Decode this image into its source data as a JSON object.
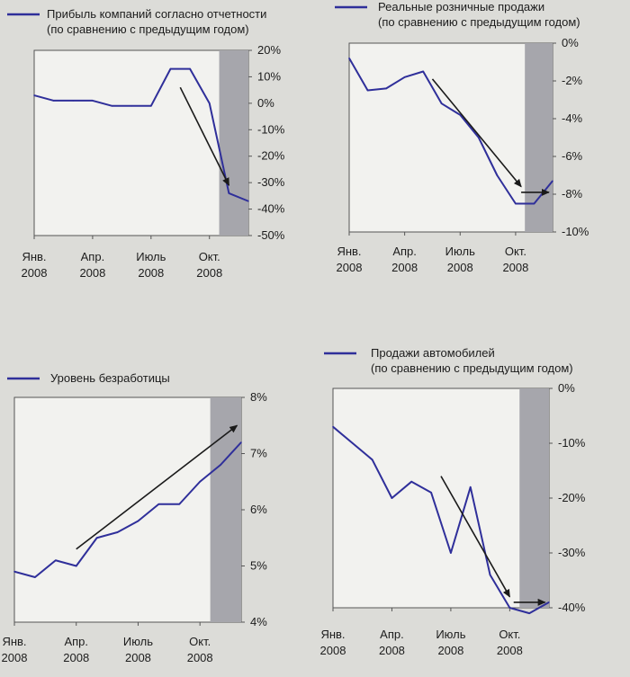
{
  "x_tick_labels": [
    {
      "month": "Янв.",
      "year": "2008"
    },
    {
      "month": "Апр.",
      "year": "2008"
    },
    {
      "month": "Июль",
      "year": "2008"
    },
    {
      "month": "Окт.",
      "year": "2008"
    }
  ],
  "colors": {
    "series": "#2f2f9a",
    "shade": "#a6a6ac",
    "arrow": "#1a1a1a",
    "panel": "#f2f2ef"
  },
  "chart_data": [
    {
      "id": "profit",
      "type": "line",
      "title_lines": [
        "Прибыль компаний согласно отчетности",
        "(по сравнению с предыдущим годом)"
      ],
      "series_name": "Прибыль компаний",
      "x_months": [
        0,
        1,
        2,
        3,
        4,
        5,
        6,
        7,
        8,
        9,
        10,
        11
      ],
      "values": [
        3,
        1,
        1,
        1,
        -1,
        -1,
        -1,
        13,
        13,
        0,
        -34,
        -37
      ],
      "ylim": [
        -50,
        20
      ],
      "y_ticks": [
        20,
        10,
        0,
        -10,
        -20,
        -30,
        -40,
        -50
      ],
      "y_tick_labels": [
        "20%",
        "10%",
        "0%",
        "-10%",
        "-20%",
        "-30%",
        "-40%",
        "-50%"
      ],
      "shaded_months": [
        10,
        11
      ],
      "trend_arrow": {
        "from": [
          7.5,
          6
        ],
        "to": [
          10,
          -31
        ]
      }
    },
    {
      "id": "retail",
      "type": "line",
      "title_lines": [
        "Реальные розничные продажи",
        "(по сравнению с предыдущим годом)"
      ],
      "series_name": "Реальные розничные продажи",
      "x_months": [
        0,
        1,
        2,
        3,
        4,
        5,
        6,
        7,
        8,
        9,
        10,
        11
      ],
      "values": [
        -0.8,
        -2.5,
        -2.4,
        -1.8,
        -1.5,
        -3.2,
        -3.8,
        -5.0,
        -7.0,
        -8.5,
        -8.5,
        -7.3
      ],
      "ylim": [
        -10,
        0
      ],
      "y_ticks": [
        0,
        -2,
        -4,
        -6,
        -8,
        -10
      ],
      "y_tick_labels": [
        "0%",
        "-2%",
        "-4%",
        "-6%",
        "-8%",
        "-10%"
      ],
      "shaded_months": [
        10,
        11
      ],
      "trend_arrow": {
        "from": [
          4.5,
          -1.9
        ],
        "to": [
          9.3,
          -7.6
        ]
      },
      "trend_arrow_2": {
        "from": [
          9.3,
          -7.9
        ],
        "to": [
          10.8,
          -7.9
        ]
      }
    },
    {
      "id": "unemployment",
      "type": "line",
      "title_lines": [
        "Уровень безработицы"
      ],
      "series_name": "Уровень безработицы",
      "x_months": [
        0,
        1,
        2,
        3,
        4,
        5,
        6,
        7,
        8,
        9,
        10,
        11
      ],
      "values": [
        4.9,
        4.8,
        5.1,
        5.0,
        5.5,
        5.6,
        5.8,
        6.1,
        6.1,
        6.5,
        6.8,
        7.2
      ],
      "ylim": [
        4,
        8
      ],
      "y_ticks": [
        8,
        7,
        6,
        5,
        4
      ],
      "y_tick_labels": [
        "8%",
        "7%",
        "6%",
        "5%",
        "4%"
      ],
      "shaded_months": [
        10,
        11
      ],
      "trend_arrow": {
        "from": [
          3,
          5.3
        ],
        "to": [
          10.8,
          7.5
        ]
      }
    },
    {
      "id": "autos",
      "type": "line",
      "title_lines": [
        "Продажи автомобилей",
        "(по сравнению с предыдущим годом)"
      ],
      "series_name": "Продажи автомобилей",
      "x_months": [
        0,
        1,
        2,
        3,
        4,
        5,
        6,
        7,
        8,
        9,
        10,
        11
      ],
      "values": [
        -7,
        -10,
        -13,
        -20,
        -17,
        -19,
        -30,
        -18,
        -34,
        -40,
        -41,
        -39
      ],
      "ylim": [
        -40,
        0
      ],
      "y_ticks": [
        0,
        -10,
        -20,
        -30,
        -40
      ],
      "y_tick_labels": [
        "0%",
        "-10%",
        "-20%",
        "-30%",
        "-40%"
      ],
      "shaded_months": [
        10,
        11
      ],
      "trend_arrow": {
        "from": [
          5.5,
          -16
        ],
        "to": [
          9,
          -38
        ]
      },
      "trend_arrow_2": {
        "from": [
          9.2,
          -39
        ],
        "to": [
          10.8,
          -39
        ]
      }
    }
  ]
}
